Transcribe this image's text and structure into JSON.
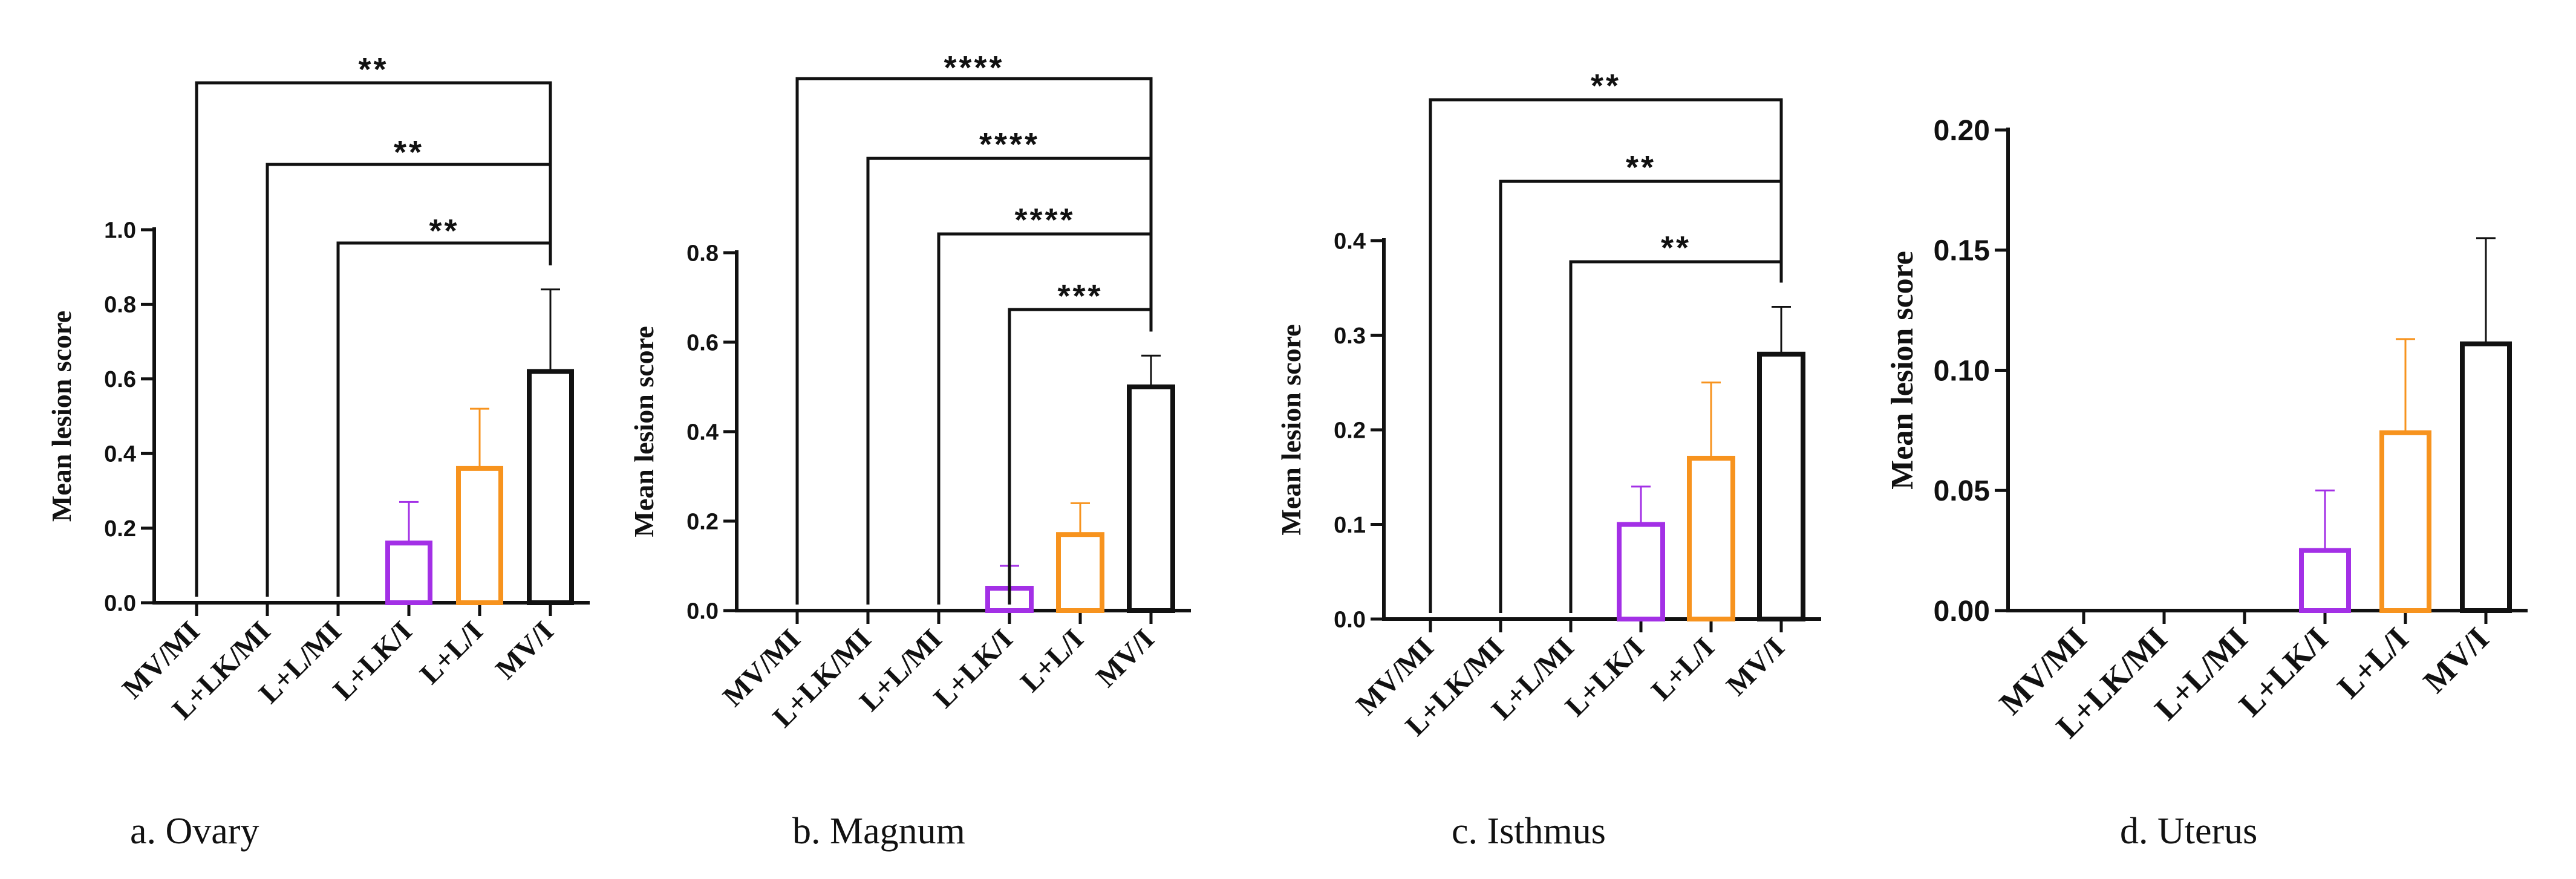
{
  "chart_data": [
    {
      "type": "bar",
      "panel": "a",
      "caption": "a. Ovary",
      "ylabel": "Mean lesion score",
      "categories": [
        "MV/MI",
        "L+LK/MI",
        "L+L/MI",
        "L+LK/I",
        "L+L/I",
        "MV/I"
      ],
      "values": [
        0,
        0,
        0,
        0.16,
        0.36,
        0.62
      ],
      "errors": [
        0,
        0,
        0,
        0.11,
        0.16,
        0.22
      ],
      "colors": [
        "#111111",
        "#111111",
        "#111111",
        "#a330e6",
        "#f7931e",
        "#111111"
      ],
      "ylim": [
        0,
        1.0
      ],
      "yticks": [
        "0.0",
        "0.2",
        "0.4",
        "0.6",
        "0.8",
        "1.0"
      ],
      "comparisons": [
        {
          "from": "MV/MI",
          "to": "MV/I",
          "label": "**"
        },
        {
          "from": "L+LK/MI",
          "to": "MV/I",
          "label": "**"
        },
        {
          "from": "L+L/MI",
          "to": "MV/I",
          "label": "**"
        }
      ]
    },
    {
      "type": "bar",
      "panel": "b",
      "caption": "b. Magnum",
      "ylabel": "Mean lesion score",
      "categories": [
        "MV/MI",
        "L+LK/MI",
        "L+L/MI",
        "L+LK/I",
        "L+L/I",
        "MV/I"
      ],
      "values": [
        0,
        0,
        0,
        0.05,
        0.17,
        0.5
      ],
      "errors": [
        0,
        0,
        0,
        0.05,
        0.07,
        0.07
      ],
      "colors": [
        "#111111",
        "#111111",
        "#111111",
        "#a330e6",
        "#f7931e",
        "#111111"
      ],
      "ylim": [
        0,
        0.8
      ],
      "yticks": [
        "0.0",
        "0.2",
        "0.4",
        "0.6",
        "0.8"
      ],
      "comparisons": [
        {
          "from": "MV/MI",
          "to": "MV/I",
          "label": "****"
        },
        {
          "from": "L+LK/MI",
          "to": "MV/I",
          "label": "****"
        },
        {
          "from": "L+L/MI",
          "to": "MV/I",
          "label": "****"
        },
        {
          "from": "L+LK/I",
          "to": "MV/I",
          "label": "***"
        }
      ]
    },
    {
      "type": "bar",
      "panel": "c",
      "caption": "c. Isthmus",
      "ylabel": "Mean lesion score",
      "categories": [
        "MV/MI",
        "L+LK/MI",
        "L+L/MI",
        "L+LK/I",
        "L+L/I",
        "MV/I"
      ],
      "values": [
        0,
        0,
        0,
        0.1,
        0.17,
        0.28
      ],
      "errors": [
        0,
        0,
        0,
        0.04,
        0.08,
        0.05
      ],
      "colors": [
        "#111111",
        "#111111",
        "#111111",
        "#a330e6",
        "#f7931e",
        "#111111"
      ],
      "ylim": [
        0,
        0.4
      ],
      "yticks": [
        "0.0",
        "0.1",
        "0.2",
        "0.3",
        "0.4"
      ],
      "comparisons": [
        {
          "from": "MV/MI",
          "to": "MV/I",
          "label": "**"
        },
        {
          "from": "L+LK/MI",
          "to": "MV/I",
          "label": "**"
        },
        {
          "from": "L+L/MI",
          "to": "MV/I",
          "label": "**"
        }
      ]
    },
    {
      "type": "bar",
      "panel": "d",
      "caption": "d. Uterus",
      "ylabel": "Mean lesion score",
      "categories": [
        "MV/MI",
        "L+LK/MI",
        "L+L/MI",
        "L+LK/I",
        "L+L/I",
        "MV/I"
      ],
      "values": [
        0,
        0,
        0,
        0.025,
        0.074,
        0.111
      ],
      "errors": [
        0,
        0,
        0,
        0.025,
        0.039,
        0.044
      ],
      "colors": [
        "#111111",
        "#111111",
        "#111111",
        "#a330e6",
        "#f7931e",
        "#111111"
      ],
      "ylim": [
        0,
        0.2
      ],
      "yticks": [
        "0.00",
        "0.05",
        "0.10",
        "0.15",
        "0.20"
      ],
      "comparisons": []
    }
  ]
}
